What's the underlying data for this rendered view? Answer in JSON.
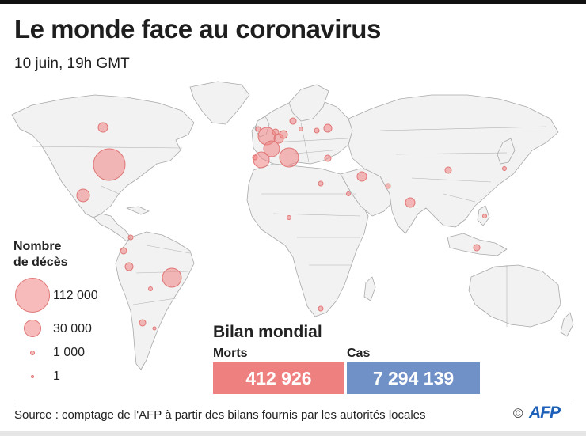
{
  "header": {
    "title": "Le monde face au coronavirus",
    "subtitle": "10 juin, 19h GMT"
  },
  "legend": {
    "title": "Nombre\nde décès",
    "items": [
      {
        "value": 112000,
        "label": "112 000"
      },
      {
        "value": 30000,
        "label": "30 000"
      },
      {
        "value": 1000,
        "label": "1 000"
      },
      {
        "value": 1,
        "label": "1"
      }
    ]
  },
  "bilan": {
    "title": "Bilan mondial",
    "morts_label": "Morts",
    "morts_value": "412 926",
    "cas_label": "Cas",
    "cas_value": "7 294 139"
  },
  "footer": {
    "source": "Source : comptage de l'AFP à partir des bilans fournis par les autorités locales",
    "copyright": "©",
    "brand": "AFP"
  },
  "colors": {
    "bubble_fill": "#f18383",
    "bubble_stroke": "#e07676",
    "morts_box": "#ef8080",
    "cas_box": "#7090c8",
    "land": "#f2f2f2",
    "border": "#a9a9a9",
    "afp_blue": "#1b5fb8"
  }
}
